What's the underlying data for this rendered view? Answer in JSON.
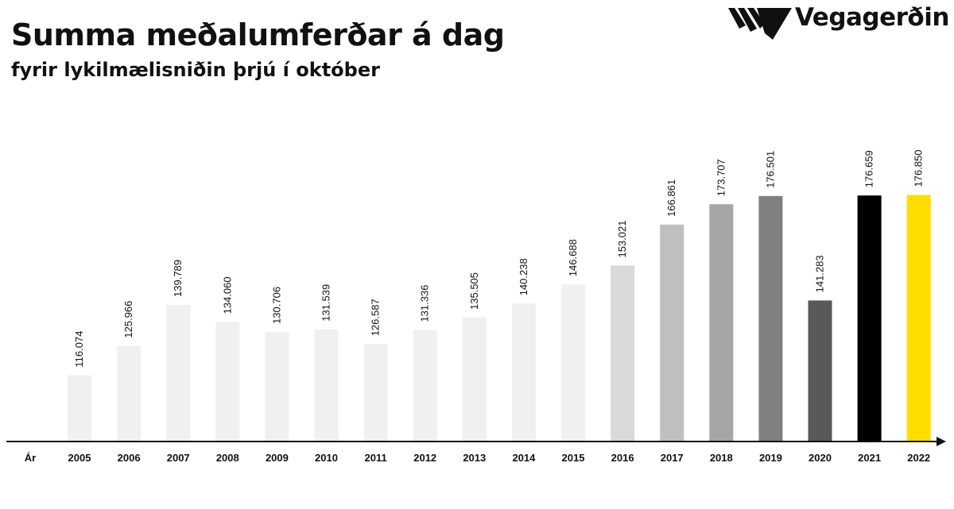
{
  "header": {
    "title": "Summa meðalumferðar á dag",
    "subtitle": "fyrir lykilmælisniðin þrjú í október",
    "brand": "Vegagerðin"
  },
  "chart_data": {
    "type": "bar",
    "xlabel": "Ár",
    "categories": [
      "2005",
      "2006",
      "2007",
      "2008",
      "2009",
      "2010",
      "2011",
      "2012",
      "2013",
      "2014",
      "2015",
      "2016",
      "2017",
      "2018",
      "2019",
      "2020",
      "2021",
      "2022"
    ],
    "values": [
      116074,
      125966,
      139789,
      134060,
      130706,
      131539,
      126587,
      131336,
      135505,
      140238,
      146688,
      153021,
      166861,
      173707,
      176501,
      141283,
      176659,
      176850
    ],
    "labels": [
      "116.074",
      "125.966",
      "139.789",
      "134.060",
      "130.706",
      "131.539",
      "126.587",
      "131.336",
      "135.505",
      "140.238",
      "146.688",
      "153.021",
      "166.861",
      "173.707",
      "176.501",
      "141.283",
      "176.659",
      "176.850"
    ],
    "colors": [
      "#f0f0f0",
      "#f0f0f0",
      "#f0f0f0",
      "#f0f0f0",
      "#f0f0f0",
      "#f0f0f0",
      "#f0f0f0",
      "#f0f0f0",
      "#f0f0f0",
      "#f0f0f0",
      "#f0f0f0",
      "#d9d9d9",
      "#bfbfbf",
      "#a6a6a6",
      "#808080",
      "#595959",
      "#000000",
      "#ffdd00"
    ],
    "grid": false
  }
}
